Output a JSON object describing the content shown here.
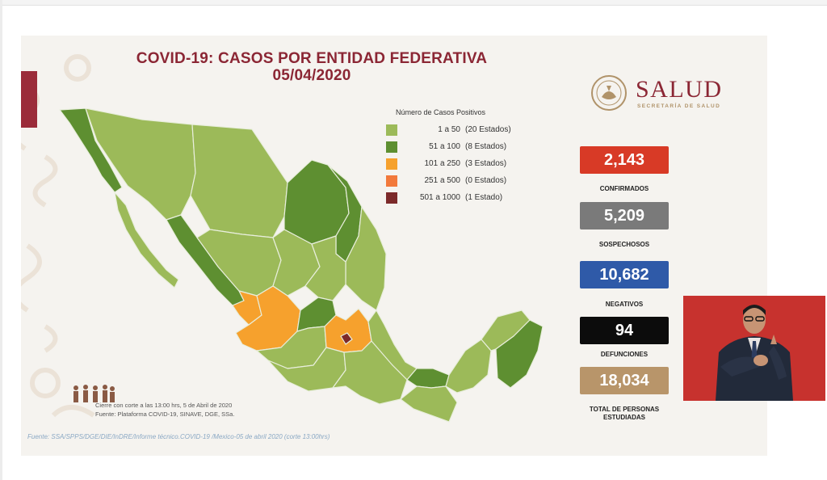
{
  "slide": {
    "title_line1": "COVID-19: CASOS POR ENTIDAD FEDERATIVA",
    "title_line2": "05/04/2020",
    "logo": {
      "name": "SALUD",
      "subtitle": "SECRETARÍA DE SALUD",
      "seal_icon": "national-seal-icon"
    },
    "legend": {
      "title": "Número de Casos Positivos",
      "items": [
        {
          "range": "1 a    50",
          "count": "(20 Estados)",
          "color": "#9cba59"
        },
        {
          "range": "51 a   100",
          "count": "(8 Estados)",
          "color": "#5e8f31"
        },
        {
          "range": "101 a   250",
          "count": "(3 Estados)",
          "color": "#f6a12d"
        },
        {
          "range": "251 a   500",
          "count": "(0 Estados)",
          "color": "#f2793b"
        },
        {
          "range": "501 a 1000",
          "count": "(1 Estado)",
          "color": "#7c2a2a"
        }
      ]
    },
    "stats": [
      {
        "value": "2,143",
        "label": "CONFIRMADOS",
        "color": "#d83a26"
      },
      {
        "value": "5,209",
        "label": "SOSPECHOSOS",
        "color": "#7a7a7a"
      },
      {
        "value": "10,682",
        "label": "NEGATIVOS",
        "color": "#2f5aa8"
      },
      {
        "value": "94",
        "label": "DEFUNCIONES",
        "color": "#0c0c0c"
      },
      {
        "value": "18,034",
        "label": "TOTAL DE PERSONAS ESTUDIADAS",
        "color": "#b8956a"
      }
    ],
    "cut_note_line1": "Cierre con corte a las 13:00 hrs, 5 de Abril de 2020",
    "cut_note_line2": "Fuente: Plataforma COVID-19, SINAVE, DGE, SSa.",
    "source": "Fuente: SSA/SPPS/DGE/DIE/InDRE/Informe técnico.COVID-19 /Mexico-05 de abril 2020 (corte 13:00hrs)"
  },
  "colors": {
    "map_light": "#9cba59",
    "map_mid": "#5e8f31",
    "map_orange": "#f6a12d",
    "map_dark": "#7c2a2a",
    "brand": "#8b2634",
    "interpreter_bg": "#c7322e"
  }
}
